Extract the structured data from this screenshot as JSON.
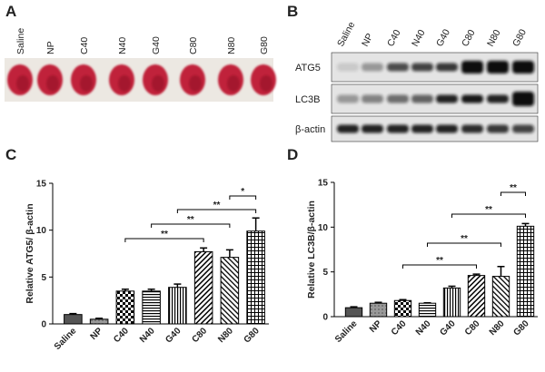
{
  "panel_a": {
    "label": "A",
    "samples": [
      "Saline",
      "NP",
      "C40",
      "N40",
      "G40",
      "C80",
      "N80",
      "G80"
    ]
  },
  "panel_b": {
    "label": "B",
    "samples": [
      "Saline",
      "NP",
      "C40",
      "N40",
      "G40",
      "C80",
      "N80",
      "G80"
    ],
    "rows": [
      "ATG5",
      "LC3B",
      "β-actin"
    ]
  },
  "chart_data": [
    {
      "panel": "C",
      "type": "bar",
      "ylabel": "Relative ATG5/ β-actin",
      "categories": [
        "Saline",
        "NP",
        "C40",
        "N40",
        "G40",
        "C80",
        "N80",
        "G80"
      ],
      "values": [
        1.0,
        0.5,
        3.5,
        3.5,
        3.9,
        7.7,
        7.1,
        9.9
      ],
      "errors": [
        0.1,
        0.1,
        0.2,
        0.2,
        0.35,
        0.4,
        0.8,
        1.4
      ],
      "color": "#000000",
      "ylim": [
        0,
        15
      ],
      "yticks": [
        0,
        5,
        10,
        15
      ],
      "annotations": [
        "**",
        "**",
        "**",
        "*"
      ]
    },
    {
      "panel": "D",
      "type": "bar",
      "ylabel": "Relative LC3B/β-actin",
      "categories": [
        "Saline",
        "NP",
        "C40",
        "N40",
        "G40",
        "C80",
        "N80",
        "G80"
      ],
      "values": [
        1.0,
        1.5,
        1.8,
        1.5,
        3.2,
        4.6,
        4.5,
        10.1
      ],
      "errors": [
        0.1,
        0.1,
        0.1,
        0.05,
        0.2,
        0.15,
        1.1,
        0.3
      ],
      "color": "#000000",
      "ylim": [
        0,
        15
      ],
      "yticks": [
        0,
        5,
        10,
        15
      ],
      "annotations": [
        "**",
        "**",
        "**",
        "**"
      ]
    }
  ]
}
